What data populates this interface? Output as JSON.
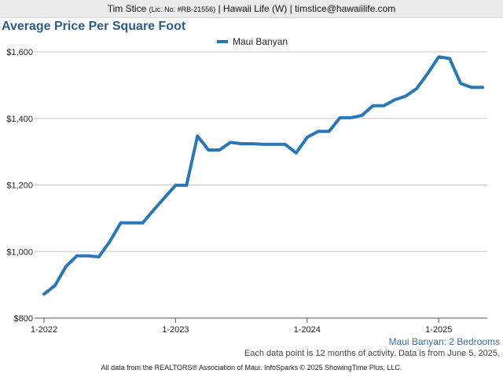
{
  "header": {
    "agent_name": "Tim Stice",
    "license": "(Lic. No. #RB-21556)",
    "office": "| Hawaii Life (W) |",
    "email": "timstice@hawaiilife.com"
  },
  "colors": {
    "series": "#2a77b8",
    "title": "#2c5d88",
    "grid": "#c6c6c6",
    "series_label": "#3a6ea8"
  },
  "chart_data": {
    "type": "line",
    "title": "Average Price Per Square Foot",
    "series_name_label": "Maui Banyan: 2 Bedrooms",
    "xlabel": "",
    "ylabel": "",
    "ylim": [
      800,
      1600
    ],
    "grid": true,
    "legend_position": "top-center",
    "y_ticks": [
      {
        "value": 800,
        "label": "$800"
      },
      {
        "value": 1000,
        "label": "$1,000"
      },
      {
        "value": 1200,
        "label": "$1,200"
      },
      {
        "value": 1400,
        "label": "$1,400"
      },
      {
        "value": 1600,
        "label": "$1,600"
      }
    ],
    "x_ticks": [
      {
        "date": "2022-01",
        "label": "1-2022"
      },
      {
        "date": "2023-01",
        "label": "1-2023"
      },
      {
        "date": "2024-01",
        "label": "1-2024"
      },
      {
        "date": "2025-01",
        "label": "1-2025"
      }
    ],
    "x_range": [
      "2022-01",
      "2025-05"
    ],
    "series": [
      {
        "name": "Maui Banyan",
        "points": [
          {
            "x": "2022-01",
            "y": 872
          },
          {
            "x": "2022-02",
            "y": 898
          },
          {
            "x": "2022-03",
            "y": 955
          },
          {
            "x": "2022-04",
            "y": 987
          },
          {
            "x": "2022-05",
            "y": 987
          },
          {
            "x": "2022-06",
            "y": 984
          },
          {
            "x": "2022-07",
            "y": 1030
          },
          {
            "x": "2022-08",
            "y": 1086
          },
          {
            "x": "2022-09",
            "y": 1086
          },
          {
            "x": "2022-10",
            "y": 1086
          },
          {
            "x": "2022-11",
            "y": 1125
          },
          {
            "x": "2022-12",
            "y": 1162
          },
          {
            "x": "2023-01",
            "y": 1199
          },
          {
            "x": "2023-02",
            "y": 1199
          },
          {
            "x": "2023-03",
            "y": 1347
          },
          {
            "x": "2023-04",
            "y": 1305
          },
          {
            "x": "2023-05",
            "y": 1305
          },
          {
            "x": "2023-06",
            "y": 1328
          },
          {
            "x": "2023-07",
            "y": 1324
          },
          {
            "x": "2023-08",
            "y": 1324
          },
          {
            "x": "2023-09",
            "y": 1322
          },
          {
            "x": "2023-10",
            "y": 1322
          },
          {
            "x": "2023-11",
            "y": 1322
          },
          {
            "x": "2023-12",
            "y": 1296
          },
          {
            "x": "2024-01",
            "y": 1343
          },
          {
            "x": "2024-02",
            "y": 1361
          },
          {
            "x": "2024-03",
            "y": 1361
          },
          {
            "x": "2024-04",
            "y": 1402
          },
          {
            "x": "2024-05",
            "y": 1402
          },
          {
            "x": "2024-06",
            "y": 1409
          },
          {
            "x": "2024-07",
            "y": 1438
          },
          {
            "x": "2024-08",
            "y": 1438
          },
          {
            "x": "2024-09",
            "y": 1456
          },
          {
            "x": "2024-10",
            "y": 1467
          },
          {
            "x": "2024-11",
            "y": 1490
          },
          {
            "x": "2024-12",
            "y": 1535
          },
          {
            "x": "2025-01",
            "y": 1585
          },
          {
            "x": "2025-02",
            "y": 1580
          },
          {
            "x": "2025-03",
            "y": 1505
          },
          {
            "x": "2025-04",
            "y": 1493
          },
          {
            "x": "2025-05",
            "y": 1493
          }
        ]
      }
    ]
  },
  "footer": {
    "note": "Each data point is 12 months of activity. Data is from June 5, 2025.",
    "credits": "All data from the REALTORS® Association of Maui. InfoSparks © 2025 ShowingTime Plus, LLC."
  }
}
